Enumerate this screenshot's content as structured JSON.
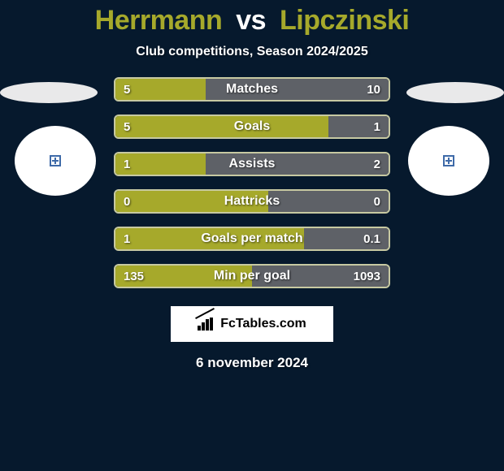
{
  "colors": {
    "background": "#06192d",
    "title_player": "#a6a92b",
    "title_vs": "#ffffff",
    "subtitle": "#ffffff",
    "left_fill": "#a6a92b",
    "right_fill": "#5e6167",
    "border": "#ffffff",
    "bar_border": "#c7c9a2",
    "value_text": "#ffffff",
    "ellipse": "#e9e9ea",
    "circle": "#ffffff",
    "badge_border": "#3e6aa8"
  },
  "sizes": {
    "title_fontsize": 34,
    "subtitle_fontsize": 16,
    "bar_label_fontsize": 16,
    "value_fontsize": 15,
    "footer_fontsize": 17,
    "brand_fontsize": 16,
    "bar_border_width": 2,
    "bar_radius": 6
  },
  "header": {
    "player_left": "Herrmann",
    "vs": "vs",
    "player_right": "Lipczinski",
    "subtitle": "Club competitions, Season 2024/2025"
  },
  "stats": [
    {
      "label": "Matches",
      "left_value": "5",
      "right_value": "10",
      "left_pct": 33
    },
    {
      "label": "Goals",
      "left_value": "5",
      "right_value": "1",
      "left_pct": 78
    },
    {
      "label": "Assists",
      "left_value": "1",
      "right_value": "2",
      "left_pct": 33
    },
    {
      "label": "Hattricks",
      "left_value": "0",
      "right_value": "0",
      "left_pct": 56
    },
    {
      "label": "Goals per match",
      "left_value": "1",
      "right_value": "0.1",
      "left_pct": 69
    },
    {
      "label": "Min per goal",
      "left_value": "135",
      "right_value": "1093",
      "left_pct": 50
    }
  ],
  "brand": {
    "text": "FcTables.com"
  },
  "footer": {
    "date": "6 november 2024"
  }
}
